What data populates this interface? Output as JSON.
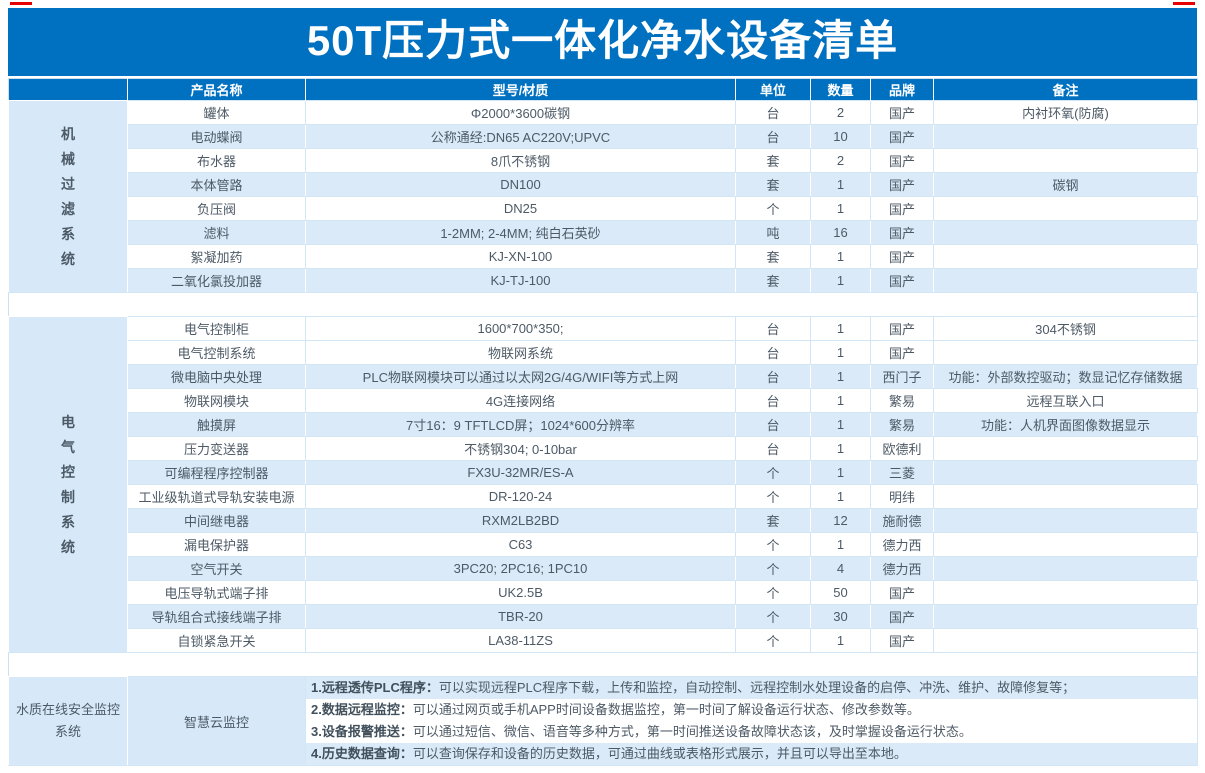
{
  "title": "50T压力式一体化净水设备清单",
  "colors": {
    "header_blue": "#0070c0",
    "stripe_blue": "#daeaf8",
    "sidebar_blue": "#d7e9f8",
    "text_gray": "#4d5a66",
    "corner_red": "#e60000"
  },
  "table": {
    "headers": [
      "产品名称",
      "型号/材质",
      "单位",
      "数量",
      "品牌",
      "备注"
    ],
    "sections": [
      {
        "category": "机械过滤系统",
        "rows": [
          {
            "name": "罐体",
            "model": "Φ2000*3600碳钢",
            "unit": "台",
            "qty": "2",
            "brand": "国产",
            "remark": "内衬环氧(防腐)"
          },
          {
            "name": "电动蝶阀",
            "model": "公称通经:DN65 AC220V;UPVC",
            "unit": "台",
            "qty": "10",
            "brand": "国产",
            "remark": ""
          },
          {
            "name": "布水器",
            "model": "8爪不锈钢",
            "unit": "套",
            "qty": "2",
            "brand": "国产",
            "remark": ""
          },
          {
            "name": "本体管路",
            "model": "DN100",
            "unit": "套",
            "qty": "1",
            "brand": "国产",
            "remark": "碳钢"
          },
          {
            "name": "负压阀",
            "model": "DN25",
            "unit": "个",
            "qty": "1",
            "brand": "国产",
            "remark": ""
          },
          {
            "name": "滤料",
            "model": "1-2MM; 2-4MM; 纯白石英砂",
            "unit": "吨",
            "qty": "16",
            "brand": "国产",
            "remark": ""
          },
          {
            "name": "絮凝加药",
            "model": "KJ-XN-100",
            "unit": "套",
            "qty": "1",
            "brand": "国产",
            "remark": ""
          },
          {
            "name": "二氧化氯投加器",
            "model": "KJ-TJ-100",
            "unit": "套",
            "qty": "1",
            "brand": "国产",
            "remark": ""
          }
        ]
      },
      {
        "category": "电气控制系统",
        "rows": [
          {
            "name": "电气控制柜",
            "model": "1600*700*350;",
            "unit": "台",
            "qty": "1",
            "brand": "国产",
            "remark": "304不锈钢"
          },
          {
            "name": "电气控制系统",
            "model": "物联网系统",
            "unit": "台",
            "qty": "1",
            "brand": "国产",
            "remark": ""
          },
          {
            "name": "微电脑中央处理",
            "model": "PLC物联网模块可以通过以太网2G/4G/WIFI等方式上网",
            "unit": "台",
            "qty": "1",
            "brand": "西门子",
            "remark": "功能：外部数控驱动；数显记忆存储数据"
          },
          {
            "name": "物联网模块",
            "model": "4G连接网络",
            "unit": "台",
            "qty": "1",
            "brand": "繁易",
            "remark": "远程互联入口"
          },
          {
            "name": "触摸屏",
            "model": "7寸16：9 TFTLCD屏；1024*600分辨率",
            "unit": "台",
            "qty": "1",
            "brand": "繁易",
            "remark": "功能：人机界面图像数据显示"
          },
          {
            "name": "压力变送器",
            "model": "不锈钢304; 0-10bar",
            "unit": "台",
            "qty": "1",
            "brand": "欧德利",
            "remark": ""
          },
          {
            "name": "可编程程序控制器",
            "model": "FX3U-32MR/ES-A",
            "unit": "个",
            "qty": "1",
            "brand": "三菱",
            "remark": ""
          },
          {
            "name": "工业级轨道式导轨安装电源",
            "model": "DR-120-24",
            "unit": "个",
            "qty": "1",
            "brand": "明纬",
            "remark": ""
          },
          {
            "name": "中间继电器",
            "model": "RXM2LB2BD",
            "unit": "套",
            "qty": "12",
            "brand": "施耐德",
            "remark": ""
          },
          {
            "name": "漏电保护器",
            "model": "C63",
            "unit": "个",
            "qty": "1",
            "brand": "德力西",
            "remark": ""
          },
          {
            "name": "空气开关",
            "model": "3PC20; 2PC16; 1PC10",
            "unit": "个",
            "qty": "4",
            "brand": "德力西",
            "remark": ""
          },
          {
            "name": "电压导轨式端子排",
            "model": "UK2.5B",
            "unit": "个",
            "qty": "50",
            "brand": "国产",
            "remark": ""
          },
          {
            "name": "导轨组合式接线端子排",
            "model": "TBR-20",
            "unit": "个",
            "qty": "30",
            "brand": "国产",
            "remark": ""
          },
          {
            "name": "自锁紧急开关",
            "model": "LA38-11ZS",
            "unit": "个",
            "qty": "1",
            "brand": "国产",
            "remark": ""
          }
        ]
      }
    ],
    "monitoring_section": {
      "category": "水质在线安全监控系统",
      "product_name": "智慧云监控",
      "features": [
        {
          "label": "1.远程透传PLC程序：",
          "text": "可以实现远程PLC程序下载，上传和监控，自动控制、远程控制水处理设备的启停、冲洗、维护、故障修复等；"
        },
        {
          "label": "2.数据远程监控：",
          "text": "可以通过网页或手机APP时间设备数据监控，第一时间了解设备运行状态、修改参数等。"
        },
        {
          "label": "3.设备报警推送：",
          "text": "可以通过短信、微信、语音等多种方式，第一时间推送设备故障状态该，及时掌握设备运行状态。"
        },
        {
          "label": "4.历史数据查询：",
          "text": "可以查询保存和设备的历史数据，可通过曲线或表格形式展示，并且可以导出至本地。"
        }
      ]
    }
  }
}
